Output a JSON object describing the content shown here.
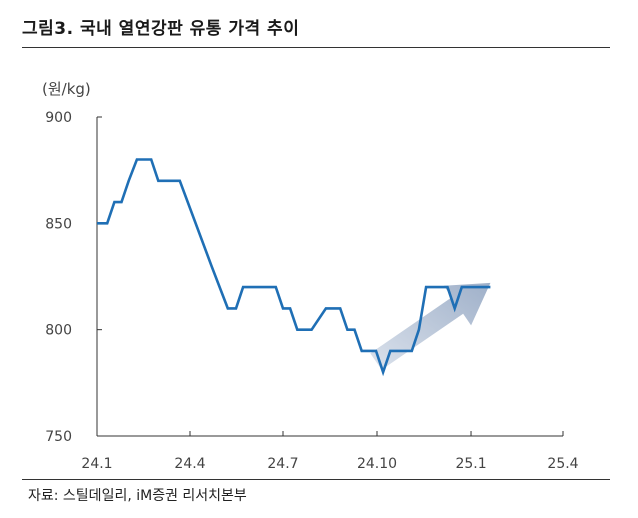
{
  "header": {
    "title": "그림3.  국내 열연강판 유통 가격 추이"
  },
  "footer": {
    "source": "자료: 스틸데일리, iM증권 리서치본부"
  },
  "chart_data": {
    "type": "line",
    "title": "그림3.  국내 열연강판 유통 가격 추이",
    "unit_label": "(원/kg)",
    "xlabel": "",
    "ylabel": "",
    "x_ticks": [
      "24.1",
      "24.4",
      "24.7",
      "24.10",
      "25.1",
      "25.4"
    ],
    "y_ticks": [
      "900",
      "850",
      "800",
      "750"
    ],
    "ylim": [
      750,
      900
    ],
    "xlim": [
      "2024-01",
      "2025-04"
    ],
    "grid": false,
    "legend": "none",
    "series": [
      {
        "color": "#1f6fb5",
        "points": [
          [
            "2024-01-01",
            850
          ],
          [
            "2024-01-11",
            850
          ],
          [
            "2024-01-18",
            860
          ],
          [
            "2024-01-25",
            860
          ],
          [
            "2024-02-01",
            870
          ],
          [
            "2024-02-09",
            880
          ],
          [
            "2024-02-23",
            880
          ],
          [
            "2024-03-01",
            870
          ],
          [
            "2024-03-22",
            870
          ],
          [
            "2024-04-22",
            830
          ],
          [
            "2024-05-08",
            810
          ],
          [
            "2024-05-16",
            810
          ],
          [
            "2024-05-23",
            820
          ],
          [
            "2024-06-24",
            820
          ],
          [
            "2024-07-01",
            810
          ],
          [
            "2024-07-08",
            810
          ],
          [
            "2024-07-15",
            800
          ],
          [
            "2024-07-29",
            800
          ],
          [
            "2024-08-12",
            810
          ],
          [
            "2024-08-26",
            810
          ],
          [
            "2024-09-02",
            800
          ],
          [
            "2024-09-09",
            800
          ],
          [
            "2024-09-16",
            790
          ],
          [
            "2024-09-30",
            790
          ],
          [
            "2024-10-07",
            780
          ],
          [
            "2024-10-14",
            790
          ],
          [
            "2024-11-04",
            790
          ],
          [
            "2024-11-11",
            800
          ],
          [
            "2024-11-18",
            820
          ],
          [
            "2024-12-09",
            820
          ],
          [
            "2024-12-16",
            810
          ],
          [
            "2024-12-23",
            820
          ],
          [
            "2025-01-20",
            820
          ]
        ]
      }
    ],
    "annotations": [
      {
        "type": "arrow",
        "direction": "up-right",
        "color": "#b5c3d8",
        "from": [
          "2024-09-30",
          785
        ],
        "to": [
          "2025-01-20",
          822
        ]
      }
    ]
  }
}
